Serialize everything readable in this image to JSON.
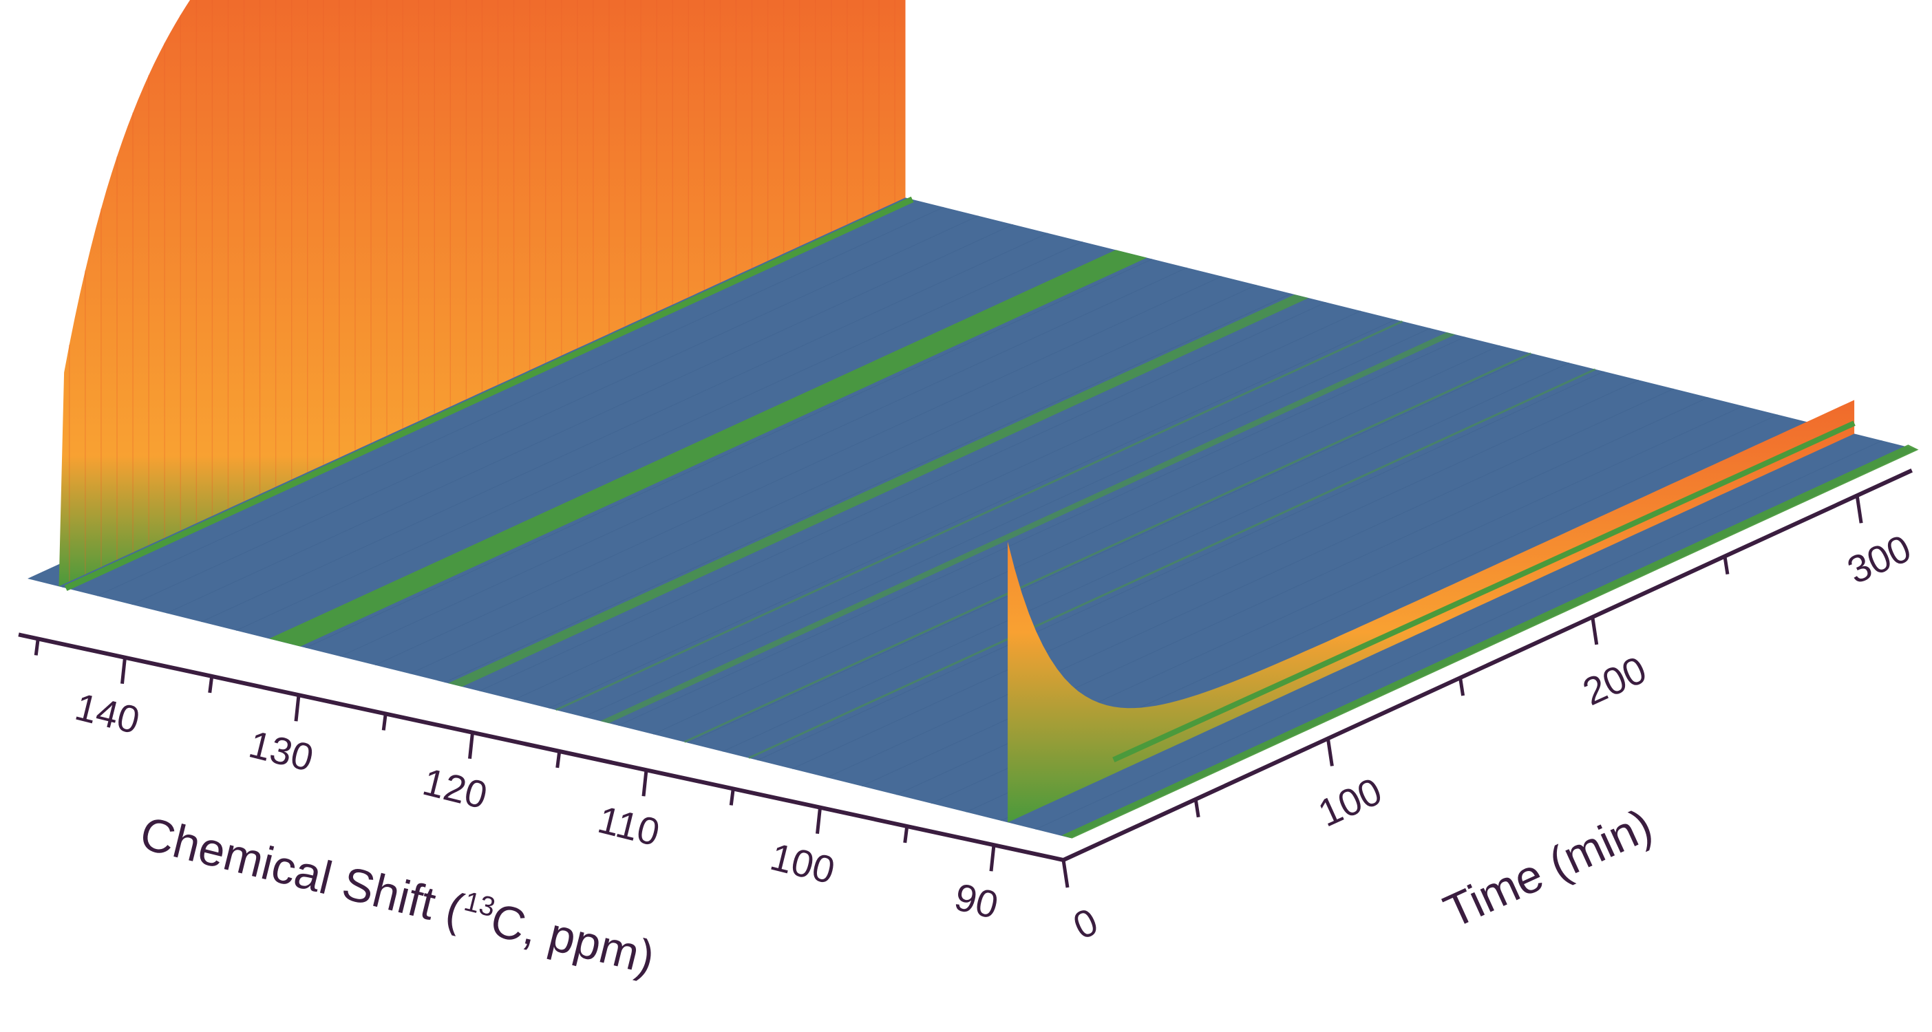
{
  "chart_data": {
    "type": "surface3d",
    "title": "",
    "x_axis": {
      "label": "Chemical Shift (",
      "label_sup": "13",
      "label_tail": "C, ppm)",
      "range": [
        146,
        86
      ],
      "ticks": [
        140,
        130,
        120,
        110,
        100,
        90
      ],
      "tick_labels": [
        "140",
        "130",
        "120",
        "110",
        "100",
        "90"
      ],
      "minor_ticks": [
        145,
        135,
        125,
        115,
        105,
        95
      ]
    },
    "y_axis": {
      "label": "Time (min)",
      "range": [
        0,
        320
      ],
      "ticks": [
        0,
        100,
        200,
        300
      ],
      "tick_labels": [
        "0",
        "100",
        "200",
        "300"
      ],
      "minor_ticks": [
        50,
        150,
        250
      ]
    },
    "colormap": {
      "low": "#476b98",
      "mid": "#4a9a3c",
      "high": "#f06a2c",
      "highlight": "#f8a132"
    },
    "peaks": [
      {
        "name": "reactant-peak",
        "shift": 144.2,
        "time_course": "rises from 0 to plateau (rapid rise, slow increase)",
        "relative_intensity": 1.0
      },
      {
        "name": "small-peak-1",
        "shift": 131.2,
        "time_course": "constant",
        "relative_intensity": 0.06
      },
      {
        "name": "small-peak-2",
        "shift": 121.4,
        "time_course": "constant",
        "relative_intensity": 0.04
      },
      {
        "name": "small-peak-3",
        "shift": 112.8,
        "time_course": "constant",
        "relative_intensity": 0.025
      },
      {
        "name": "decaying-peak",
        "shift": 89.6,
        "time_course": "decays from max at t=0 to low plateau",
        "relative_intensity": 0.4
      },
      {
        "name": "growing-edge-peak",
        "shift": 86.5,
        "time_course": "slowly grows",
        "relative_intensity": 0.06
      }
    ]
  }
}
